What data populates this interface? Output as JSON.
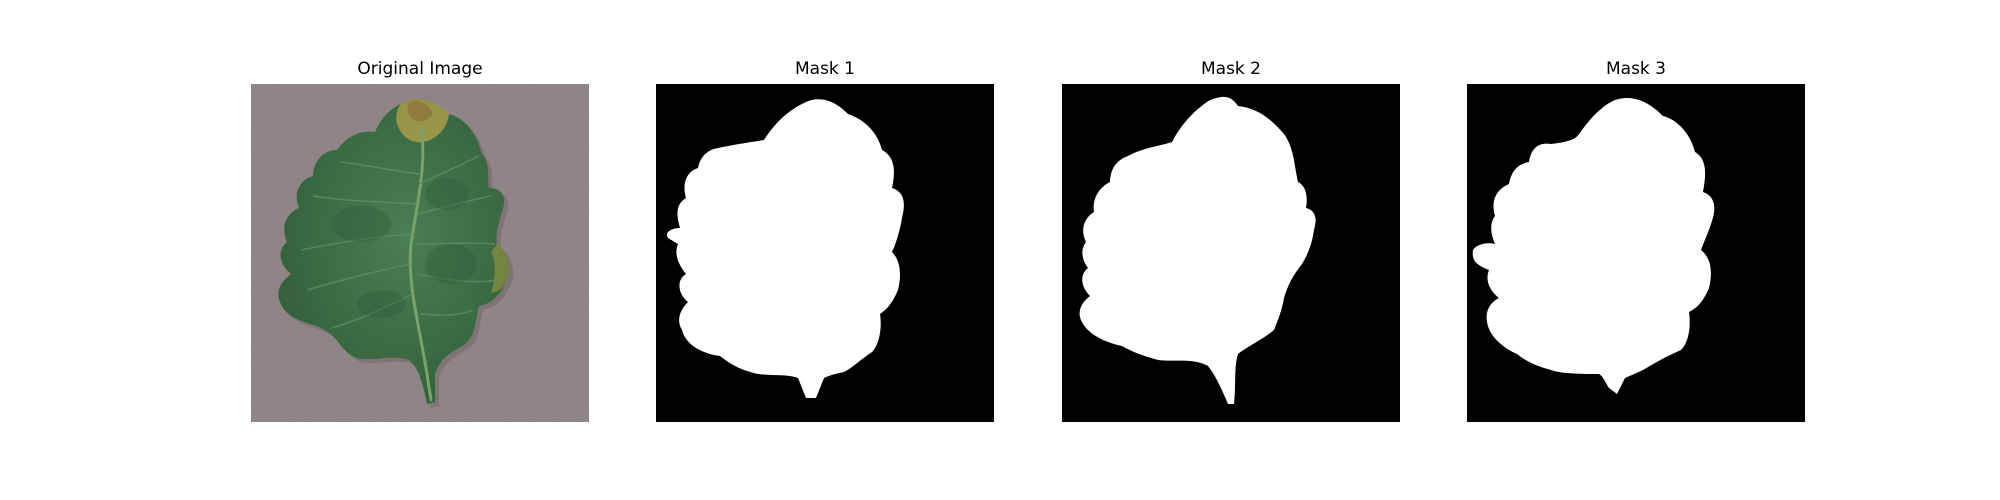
{
  "figure": {
    "panels": [
      {
        "title": "Original Image",
        "kind": "photo",
        "subject": "leaf-photo"
      },
      {
        "title": "Mask 1",
        "kind": "mask"
      },
      {
        "title": "Mask 2",
        "kind": "mask"
      },
      {
        "title": "Mask 3",
        "kind": "mask"
      }
    ]
  },
  "colors": {
    "background_photo": "#958a8c",
    "leaf_green": "#3f7447",
    "leaf_dark": "#2c5a36",
    "leaf_vein": "#6f9a68",
    "leaf_tip": "#b8a24a",
    "mask_bg": "#000000",
    "mask_fg": "#ffffff"
  }
}
